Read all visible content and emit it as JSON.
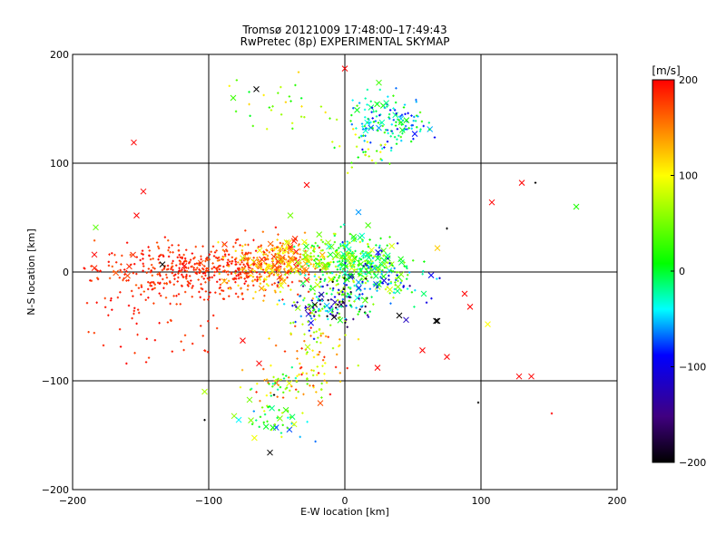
{
  "chart_data": {
    "type": "scatter",
    "title": "Tromsø 20121009 17:48:00–17:49:43",
    "subtitle": "RwPretec (8p) EXPERIMENTAL SKYMAP",
    "xlabel": "E-W location [km]",
    "ylabel": "N-S location [km]",
    "xlim": [
      -200,
      200
    ],
    "ylim": [
      -200,
      200
    ],
    "x_ticks": [
      -200,
      -100,
      0,
      100,
      200
    ],
    "y_ticks": [
      -200,
      -100,
      0,
      100,
      200
    ],
    "x_tick_labels": [
      "−200",
      "−100",
      "0",
      "100",
      "200"
    ],
    "y_tick_labels": [
      "−200",
      "−100",
      "0",
      "100",
      "200"
    ],
    "grid": true,
    "colorbar": {
      "label": "[m/s]",
      "range": [
        -200,
        200
      ],
      "ticks": [
        200,
        100,
        0,
        -100,
        -200
      ],
      "tick_labels": [
        "200",
        "100",
        "0",
        "−100",
        "−200"
      ],
      "colors": [
        "#000000",
        "#400080",
        "#0000ff",
        "#00ffff",
        "#00ff00",
        "#ffff00",
        "#ff0000"
      ]
    },
    "markers": [
      {
        "x": -155,
        "y": 119,
        "v": 200,
        "m": "x"
      },
      {
        "x": -148,
        "y": 74,
        "v": 200,
        "m": "x"
      },
      {
        "x": -153,
        "y": 52,
        "v": 200,
        "m": "x"
      },
      {
        "x": -184,
        "y": 16,
        "v": 200,
        "m": "x"
      },
      {
        "x": -183,
        "y": 41,
        "v": 40,
        "m": "x"
      },
      {
        "x": -134,
        "y": 7,
        "v": -200,
        "m": "x"
      },
      {
        "x": -65,
        "y": 168,
        "v": -200,
        "m": "x"
      },
      {
        "x": -82,
        "y": 160,
        "v": 30,
        "m": "x"
      },
      {
        "x": 0,
        "y": 187,
        "v": 200,
        "m": "x"
      },
      {
        "x": 25,
        "y": 174,
        "v": 30,
        "m": "x"
      },
      {
        "x": 140,
        "y": 82,
        "v": -200,
        "m": "+"
      },
      {
        "x": 130,
        "y": 82,
        "v": 200,
        "m": "x"
      },
      {
        "x": 108,
        "y": 64,
        "v": 200,
        "m": "x"
      },
      {
        "x": 170,
        "y": 60,
        "v": 20,
        "m": "x"
      },
      {
        "x": -28,
        "y": 80,
        "v": 200,
        "m": "x"
      },
      {
        "x": -40,
        "y": 52,
        "v": 50,
        "m": "x"
      },
      {
        "x": 10,
        "y": 55,
        "v": -60,
        "m": "x"
      },
      {
        "x": 75,
        "y": 40,
        "v": -200,
        "m": "+"
      },
      {
        "x": 68,
        "y": 22,
        "v": 120,
        "m": "x"
      },
      {
        "x": 88,
        "y": -20,
        "v": 200,
        "m": "x"
      },
      {
        "x": 67,
        "y": -45,
        "v": -200,
        "m": "x"
      },
      {
        "x": 92,
        "y": -32,
        "v": 200,
        "m": "x"
      },
      {
        "x": 105,
        "y": -48,
        "v": 100,
        "m": "x"
      },
      {
        "x": 57,
        "y": -72,
        "v": 200,
        "m": "x"
      },
      {
        "x": 75,
        "y": -78,
        "v": 200,
        "m": "x"
      },
      {
        "x": 128,
        "y": -96,
        "v": 200,
        "m": "x"
      },
      {
        "x": 137,
        "y": -96,
        "v": 200,
        "m": "x"
      },
      {
        "x": 98,
        "y": -120,
        "v": -200,
        "m": "+"
      },
      {
        "x": 152,
        "y": -130,
        "v": 200,
        "m": "+"
      },
      {
        "x": -63,
        "y": -84,
        "v": 200,
        "m": "x"
      },
      {
        "x": -75,
        "y": -63,
        "v": 200,
        "m": "x"
      },
      {
        "x": -52,
        "y": -113,
        "v": -200,
        "m": "+"
      },
      {
        "x": -103,
        "y": -110,
        "v": 70,
        "m": "x"
      },
      {
        "x": -103,
        "y": -136,
        "v": -200,
        "m": "+"
      },
      {
        "x": -55,
        "y": -166,
        "v": -200,
        "m": "x"
      },
      {
        "x": 24,
        "y": -88,
        "v": 200,
        "m": "x"
      },
      {
        "x": 45,
        "y": -44,
        "v": -120,
        "m": "x"
      },
      {
        "x": 40,
        "y": -40,
        "v": -200,
        "m": "x"
      },
      {
        "x": 68,
        "y": -45,
        "v": -200,
        "m": "x"
      },
      {
        "x": 58,
        "y": -20,
        "v": -10,
        "m": "x"
      }
    ],
    "clusters": [
      {
        "cx": -110,
        "cy": 2,
        "sx": 35,
        "sy": 12,
        "n": 420,
        "vmin": 165,
        "vmax": 200,
        "xmark": 0.02
      },
      {
        "cx": -160,
        "cy": -20,
        "sx": 20,
        "sy": 22,
        "n": 45,
        "vmin": 175,
        "vmax": 200,
        "xmark": 0.0
      },
      {
        "cx": -120,
        "cy": -45,
        "sx": 18,
        "sy": 20,
        "n": 25,
        "vmin": 175,
        "vmax": 200,
        "xmark": 0.0
      },
      {
        "cx": -70,
        "cy": 5,
        "sx": 12,
        "sy": 14,
        "n": 110,
        "vmin": 100,
        "vmax": 200,
        "xmark": 0.05
      },
      {
        "cx": -45,
        "cy": 8,
        "sx": 10,
        "sy": 12,
        "n": 190,
        "vmin": 80,
        "vmax": 200,
        "xmark": 0.22
      },
      {
        "cx": -20,
        "cy": 12,
        "sx": 8,
        "sy": 10,
        "n": 70,
        "vmin": 0,
        "vmax": 160,
        "xmark": 0.2
      },
      {
        "cx": 5,
        "cy": 8,
        "sx": 14,
        "sy": 12,
        "n": 230,
        "vmin": -40,
        "vmax": 90,
        "xmark": 0.25
      },
      {
        "cx": 25,
        "cy": 0,
        "sx": 14,
        "sy": 14,
        "n": 90,
        "vmin": -120,
        "vmax": 100,
        "xmark": 0.2
      },
      {
        "cx": -10,
        "cy": -28,
        "sx": 16,
        "sy": 12,
        "n": 170,
        "vmin": -200,
        "vmax": 80,
        "xmark": 0.12
      },
      {
        "cx": 45,
        "cy": -10,
        "sx": 12,
        "sy": 12,
        "n": 30,
        "vmin": -200,
        "vmax": 60,
        "xmark": 0.15
      },
      {
        "cx": -20,
        "cy": -75,
        "sx": 12,
        "sy": 18,
        "n": 80,
        "vmin": 40,
        "vmax": 200,
        "xmark": 0.02
      },
      {
        "cx": -45,
        "cy": -105,
        "sx": 14,
        "sy": 9,
        "n": 60,
        "vmin": -40,
        "vmax": 190,
        "xmark": 0.05
      },
      {
        "cx": -55,
        "cy": -135,
        "sx": 14,
        "sy": 10,
        "n": 45,
        "vmin": -80,
        "vmax": 120,
        "xmark": 0.3
      },
      {
        "cx": -40,
        "cy": 150,
        "sx": 20,
        "sy": 14,
        "n": 30,
        "vmin": 0,
        "vmax": 120,
        "xmark": 0.03
      },
      {
        "cx": 32,
        "cy": 138,
        "sx": 14,
        "sy": 12,
        "n": 150,
        "vmin": -100,
        "vmax": 40,
        "xmark": 0.15
      },
      {
        "cx": 12,
        "cy": 115,
        "sx": 12,
        "sy": 10,
        "n": 25,
        "vmin": 0,
        "vmax": 120,
        "xmark": 0.05
      }
    ]
  }
}
